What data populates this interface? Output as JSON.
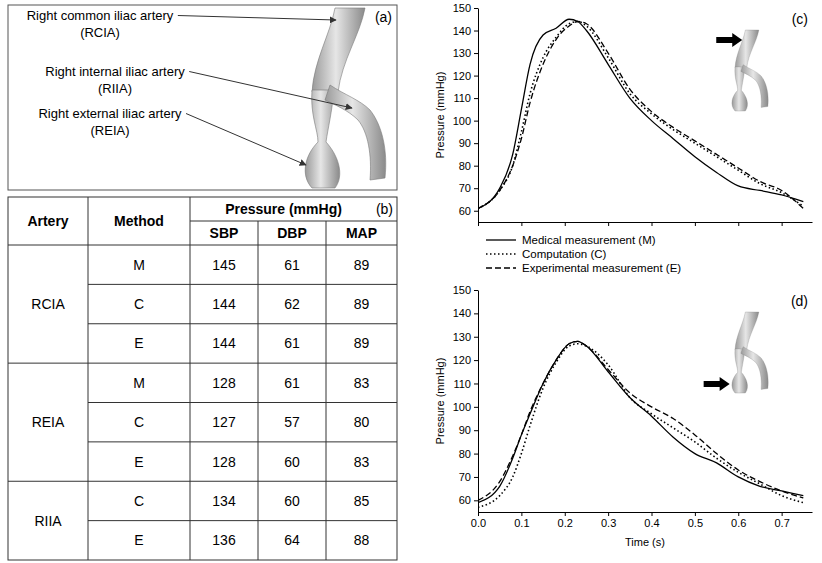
{
  "diagram": {
    "letter": "(a)",
    "labels": [
      {
        "lines": [
          "Right common iliac artery",
          "(RCIA)"
        ]
      },
      {
        "lines": [
          "Right internal iliac artery",
          "(RIIA)"
        ]
      },
      {
        "lines": [
          "Right external iliac artery",
          "(REIA)"
        ]
      }
    ]
  },
  "table": {
    "letter": "(b)",
    "header": {
      "artery": "Artery",
      "method": "Method",
      "group": "Pressure (mmHg)",
      "columns": [
        "SBP",
        "DBP",
        "MAP"
      ]
    },
    "groups": [
      {
        "artery": "RCIA",
        "rows": [
          {
            "method": "M",
            "values": [
              145,
              61,
              89
            ]
          },
          {
            "method": "C",
            "values": [
              144,
              62,
              89
            ]
          },
          {
            "method": "E",
            "values": [
              144,
              61,
              89
            ]
          }
        ]
      },
      {
        "artery": "REIA",
        "rows": [
          {
            "method": "M",
            "values": [
              128,
              61,
              83
            ]
          },
          {
            "method": "C",
            "values": [
              127,
              57,
              80
            ]
          },
          {
            "method": "E",
            "values": [
              128,
              60,
              83
            ]
          }
        ]
      },
      {
        "artery": "RIIA",
        "rows": [
          {
            "method": "C",
            "values": [
              134,
              60,
              85
            ]
          },
          {
            "method": "E",
            "values": [
              136,
              64,
              88
            ]
          }
        ]
      }
    ]
  },
  "chart_data": [
    {
      "type": "line",
      "panel": "(c)",
      "y_label": "Pressure (mmHg)",
      "x": [
        0,
        0.05,
        0.08,
        0.1,
        0.12,
        0.15,
        0.18,
        0.21,
        0.23,
        0.25,
        0.3,
        0.35,
        0.4,
        0.45,
        0.5,
        0.55,
        0.6,
        0.65,
        0.7,
        0.75
      ],
      "xlim": [
        0,
        0.77
      ],
      "xticks": [
        0,
        0.1,
        0.2,
        0.3,
        0.4,
        0.5,
        0.6,
        0.7
      ],
      "ylim": [
        55,
        150
      ],
      "yticks": [
        60,
        70,
        80,
        90,
        100,
        110,
        120,
        130,
        140,
        150
      ],
      "grid": false,
      "legend": "bottom",
      "tick_labels": "y",
      "series": [
        {
          "name": "Medical measurement (M)",
          "color": "#000000",
          "line_style": "solid",
          "values": [
            61,
            70,
            85,
            105,
            125,
            138,
            141,
            145,
            144,
            140,
            125,
            110,
            100,
            92,
            84,
            77,
            71,
            69,
            67,
            64
          ]
        },
        {
          "name": "Computation (C)",
          "color": "#000000",
          "line_style": "dotted",
          "values": [
            61,
            69,
            80,
            95,
            112,
            128,
            137,
            143,
            144,
            142,
            128,
            112,
            103,
            96,
            90,
            84,
            78,
            72,
            68,
            62
          ]
        },
        {
          "name": "Experimental measurement (E)",
          "color": "#000000",
          "line_style": "dashed",
          "values": [
            61,
            69,
            80,
            92,
            108,
            125,
            136,
            142,
            144,
            143,
            130,
            114,
            104,
            97,
            91,
            85,
            79,
            73,
            69,
            61
          ]
        }
      ]
    },
    {
      "type": "line",
      "panel": "(d)",
      "y_label": "Pressure (mmHg)",
      "x_label": "Time (s)",
      "x": [
        0,
        0.05,
        0.08,
        0.1,
        0.12,
        0.15,
        0.18,
        0.21,
        0.23,
        0.25,
        0.3,
        0.35,
        0.4,
        0.45,
        0.5,
        0.55,
        0.6,
        0.65,
        0.7,
        0.75
      ],
      "xlim": [
        0,
        0.77
      ],
      "xticks": [
        {
          "value": 0,
          "label": "0.0"
        },
        0.1,
        0.2,
        0.3,
        0.4,
        0.5,
        0.6,
        0.7
      ],
      "ylim": [
        55,
        150
      ],
      "yticks": [
        60,
        70,
        80,
        90,
        100,
        110,
        120,
        130,
        140,
        150
      ],
      "grid": false,
      "series": [
        {
          "name": "Medical measurement (M)",
          "color": "#000000",
          "line_style": "solid",
          "values": [
            59,
            66,
            78,
            88,
            97,
            110,
            120,
            127,
            128,
            126,
            115,
            104,
            96,
            87,
            80,
            76,
            70,
            66,
            64,
            62
          ]
        },
        {
          "name": "Computation (C)",
          "color": "#000000",
          "line_style": "dotted",
          "values": [
            57,
            62,
            70,
            80,
            92,
            108,
            119,
            126,
            127,
            126,
            118,
            104,
            97,
            91,
            85,
            78,
            72,
            67,
            62,
            59
          ]
        },
        {
          "name": "Experimental measurement (E)",
          "color": "#000000",
          "line_style": "dashed",
          "values": [
            60,
            68,
            79,
            88,
            98,
            110,
            120,
            127,
            128,
            126,
            116,
            106,
            100,
            95,
            88,
            80,
            73,
            68,
            64,
            61
          ]
        }
      ]
    }
  ]
}
